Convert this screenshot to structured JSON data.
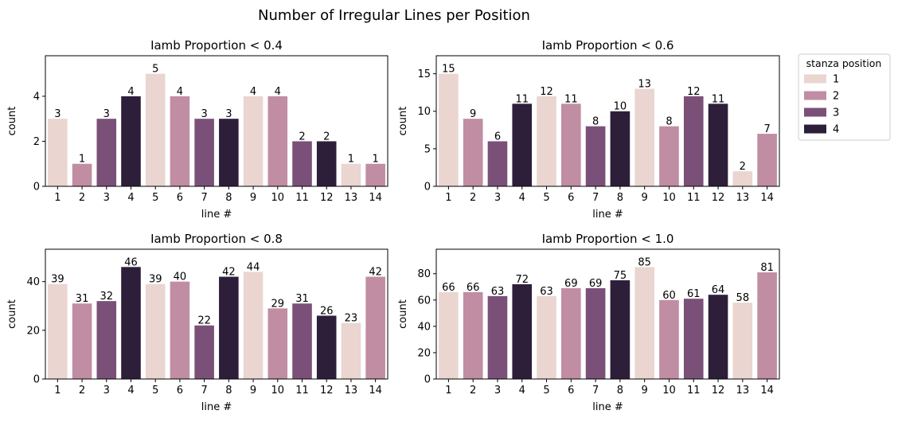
{
  "figure_title": "Number of Irregular Lines per Position",
  "palette": {
    "1": "#ead5d1",
    "2": "#c08da2",
    "3": "#7a5078",
    "4": "#2d1f3a"
  },
  "legend": {
    "title": "stanza position",
    "entries": [
      {
        "label": "1",
        "position": 1
      },
      {
        "label": "2",
        "position": 2
      },
      {
        "label": "3",
        "position": 3
      },
      {
        "label": "4",
        "position": 4
      }
    ]
  },
  "chart_data": [
    {
      "type": "bar",
      "title": "Iamb Proportion < 0.4",
      "xlabel": "line #",
      "ylabel": "count",
      "categories": [
        "1",
        "2",
        "3",
        "4",
        "5",
        "6",
        "7",
        "8",
        "9",
        "10",
        "11",
        "12",
        "13",
        "14"
      ],
      "values": [
        3,
        1,
        3,
        4,
        5,
        4,
        3,
        3,
        4,
        4,
        2,
        2,
        1,
        1
      ],
      "stanza_position": [
        1,
        2,
        3,
        4,
        1,
        2,
        3,
        4,
        1,
        2,
        3,
        4,
        1,
        2
      ],
      "ylim": [
        0,
        5.8
      ],
      "yticks": [
        0,
        2,
        4
      ]
    },
    {
      "type": "bar",
      "title": "Iamb Proportion < 0.6",
      "xlabel": "line #",
      "ylabel": "count",
      "categories": [
        "1",
        "2",
        "3",
        "4",
        "5",
        "6",
        "7",
        "8",
        "9",
        "10",
        "11",
        "12",
        "13",
        "14"
      ],
      "values": [
        15,
        9,
        6,
        11,
        12,
        11,
        8,
        10,
        13,
        8,
        12,
        11,
        2,
        7
      ],
      "stanza_position": [
        1,
        2,
        3,
        4,
        1,
        2,
        3,
        4,
        1,
        2,
        3,
        4,
        1,
        2
      ],
      "ylim": [
        0,
        17.4
      ],
      "yticks": [
        0,
        5,
        10,
        15
      ]
    },
    {
      "type": "bar",
      "title": "Iamb Proportion < 0.8",
      "xlabel": "line #",
      "ylabel": "count",
      "categories": [
        "1",
        "2",
        "3",
        "4",
        "5",
        "6",
        "7",
        "8",
        "9",
        "10",
        "11",
        "12",
        "13",
        "14"
      ],
      "values": [
        39,
        31,
        32,
        46,
        39,
        40,
        22,
        42,
        44,
        29,
        31,
        26,
        23,
        42
      ],
      "stanza_position": [
        1,
        2,
        3,
        4,
        1,
        2,
        3,
        4,
        1,
        2,
        3,
        4,
        1,
        2
      ],
      "ylim": [
        0,
        53.3
      ],
      "yticks": [
        0,
        20,
        40
      ]
    },
    {
      "type": "bar",
      "title": "Iamb Proportion < 1.0",
      "xlabel": "line #",
      "ylabel": "count",
      "categories": [
        "1",
        "2",
        "3",
        "4",
        "5",
        "6",
        "7",
        "8",
        "9",
        "10",
        "11",
        "12",
        "13",
        "14"
      ],
      "values": [
        66,
        66,
        63,
        72,
        63,
        69,
        69,
        75,
        85,
        60,
        61,
        64,
        58,
        81
      ],
      "stanza_position": [
        1,
        2,
        3,
        4,
        1,
        2,
        3,
        4,
        1,
        2,
        3,
        4,
        1,
        2
      ],
      "ylim": [
        0,
        98.6
      ],
      "yticks": [
        0,
        20,
        40,
        60,
        80
      ]
    }
  ]
}
